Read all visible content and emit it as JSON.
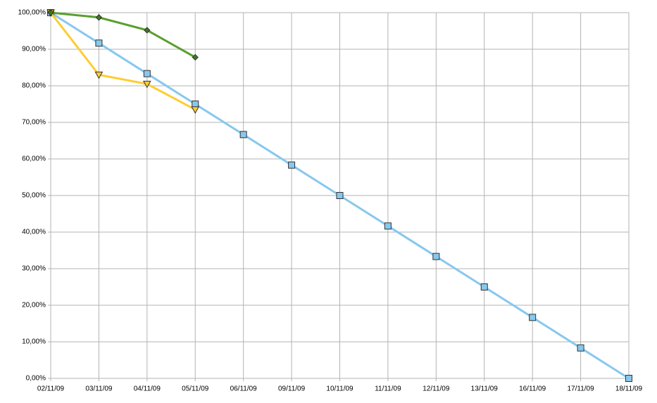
{
  "chart_data": {
    "type": "line",
    "categories": [
      "02/11/09",
      "03/11/09",
      "04/11/09",
      "05/11/09",
      "06/11/09",
      "09/11/09",
      "10/11/09",
      "11/11/09",
      "12/11/09",
      "13/11/09",
      "16/11/09",
      "17/11/09",
      "18/11/09"
    ],
    "series": [
      {
        "color": "#87c8ee",
        "marker": "square",
        "values": [
          100,
          91.67,
          83.33,
          75,
          66.67,
          58.33,
          50,
          41.67,
          33.33,
          25,
          16.67,
          8.33,
          0
        ]
      },
      {
        "color": "#ffcc33",
        "marker": "triangle-down",
        "values": [
          100,
          83,
          80.5,
          73.5,
          null,
          null,
          null,
          null,
          null,
          null,
          null,
          null,
          null
        ]
      },
      {
        "color": "#5a9e2f",
        "marker": "diamond",
        "values": [
          100,
          98.7,
          95.2,
          87.8,
          null,
          null,
          null,
          null,
          null,
          null,
          null,
          null,
          null
        ]
      }
    ],
    "ylim": [
      0,
      100
    ],
    "yticks": [
      {
        "value": 0,
        "label": "0,00%"
      },
      {
        "value": 10,
        "label": "10,00%"
      },
      {
        "value": 20,
        "label": "20,00%"
      },
      {
        "value": 30,
        "label": "30,00%"
      },
      {
        "value": 40,
        "label": "40,00%"
      },
      {
        "value": 50,
        "label": "50,00%"
      },
      {
        "value": 60,
        "label": "60,00%"
      },
      {
        "value": 70,
        "label": "70,00%"
      },
      {
        "value": 80,
        "label": "80,00%"
      },
      {
        "value": 90,
        "label": "90,00%"
      },
      {
        "value": 100,
        "label": "100,00%"
      }
    ],
    "grid": true
  }
}
